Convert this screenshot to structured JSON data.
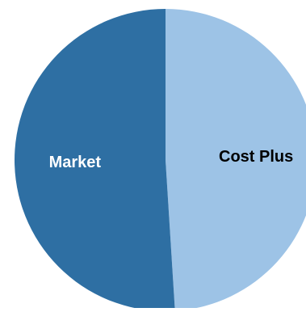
{
  "chart_data": {
    "type": "pie",
    "title": "",
    "legend": "none",
    "slices": [
      {
        "label": "Cost Plus",
        "value": 49,
        "color": "#9dc3e6",
        "label_color": "#000000"
      },
      {
        "label": "Market",
        "value": 51,
        "color": "#2e6fa3",
        "label_color": "#ffffff"
      }
    ]
  }
}
